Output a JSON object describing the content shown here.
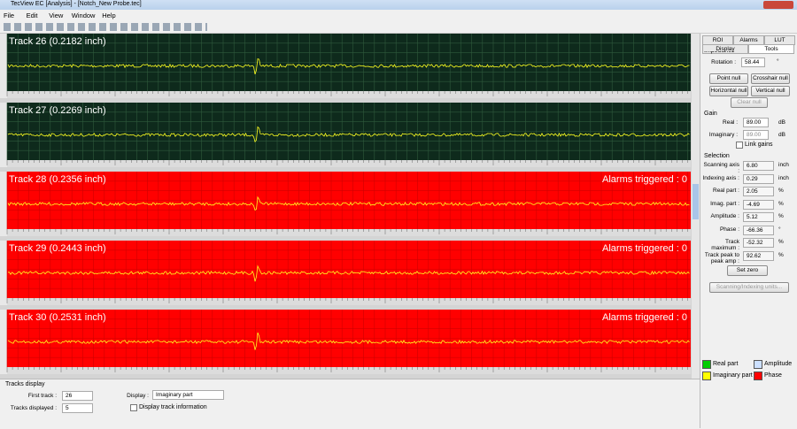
{
  "window": {
    "title": "TecView EC [Analysis] - [Notch_New Probe.tec]",
    "menu": [
      "File",
      "Edit",
      "View",
      "Window",
      "Help"
    ]
  },
  "tracks": [
    {
      "label": "Track 26 (0.2182 inch)"
    },
    {
      "label": "Track 27 (0.2269 inch)"
    },
    {
      "label": "Track 28 (0.2356 inch)",
      "alarm": "Alarms triggered : 0"
    },
    {
      "label": "Track 29 (0.2443 inch)",
      "alarm": "Alarms triggered : 0"
    },
    {
      "label": "Track 30 (0.2531 inch)",
      "alarm": "Alarms triggered : 0"
    }
  ],
  "panel": {
    "tabs_top": [
      "ROI",
      "Alarms",
      "LUT"
    ],
    "tabs_bottom": [
      "Display",
      "Tools"
    ],
    "impedance": {
      "title": "Impedance",
      "rotation_label": "Rotation :",
      "rotation": "58.44",
      "rotation_unit": "°",
      "buttons": [
        "Point null",
        "Crosshair null",
        "Horizontal null",
        "Vertical null"
      ],
      "clear": "Clear null"
    },
    "gain": {
      "title": "Gain",
      "real_label": "Real :",
      "real": "89.00",
      "imag_label": "Imaginary :",
      "imag": "89.00",
      "unit": "dB",
      "link": "Link gains"
    },
    "selection": {
      "title": "Selection",
      "rows": [
        {
          "label": "Scanning axis :",
          "value": "6.80",
          "unit": "inch"
        },
        {
          "label": "Indexing axis :",
          "value": "0.29",
          "unit": "inch"
        },
        {
          "label": "Real part :",
          "value": "2.05",
          "unit": "%"
        },
        {
          "label": "Imag. part :",
          "value": "-4.69",
          "unit": "%"
        },
        {
          "label": "Amplitude :",
          "value": "5.12",
          "unit": "%"
        },
        {
          "label": "Phase :",
          "value": "-66.36",
          "unit": "°"
        },
        {
          "label": "Track maximum :",
          "value": "-52.32",
          "unit": "%"
        },
        {
          "label": "Track peak to peak amp :",
          "value": "92.62",
          "unit": "%"
        }
      ],
      "set_zero": "Set zero",
      "units": "Scanning/Indexing units..."
    },
    "legend": [
      {
        "name": "Real part",
        "color": "#00cc00"
      },
      {
        "name": "Amplitude",
        "color": "#cce0ff"
      },
      {
        "name": "Imaginary part",
        "color": "#ffff00"
      },
      {
        "name": "Phase",
        "color": "#ff0000"
      }
    ]
  },
  "bottom": {
    "title": "Tracks display",
    "first_label": "First track :",
    "first": "26",
    "count_label": "Tracks displayed :",
    "count": "5",
    "display_label": "Display :",
    "display": "Imaginary part",
    "info": "Display track information"
  }
}
